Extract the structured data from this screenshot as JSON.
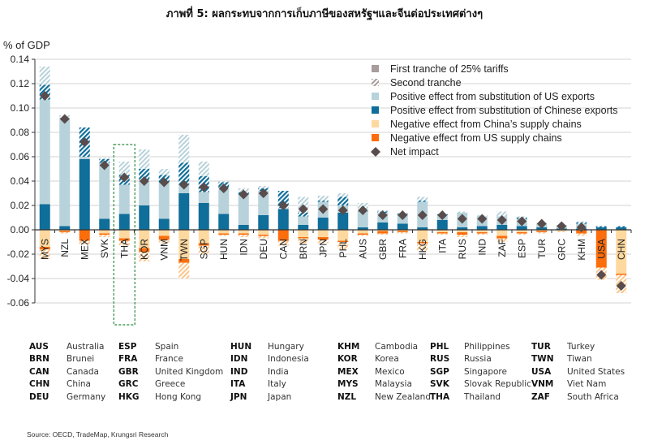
{
  "title": "ภาพที่ 5: ผลกระทบจากการเก็บภาษีของสหรัฐฯและจีนต่อประเทศต่างๆ",
  "source": "Source: OECD, TradeMap, Krungsri Research",
  "colors": {
    "chinese": "#0f6e9a",
    "us": "#b7d2da",
    "china_supply": "#fdd9a0",
    "us_supply": "#fc6d0c",
    "net": "#584c4c",
    "highlight": "#2e8b3e",
    "first_tranche": "#a89c9c"
  },
  "chart_data": {
    "type": "bar",
    "title": "",
    "ylabel": "% of GDP",
    "ylim": [
      -0.06,
      0.14
    ],
    "yticks": [
      "-0.06",
      "-0.04",
      "-0.02",
      "0.00",
      "0.02",
      "0.04",
      "0.06",
      "0.08",
      "0.10",
      "0.12",
      "0.14"
    ],
    "grid": true,
    "legend_position": "top-right",
    "highlight_category": "THA",
    "legend": [
      "First tranche of 25% tariffs",
      "Second tranche",
      "Positive effect from substitution of US exports",
      "Positive effect from substitution of Chinese exports",
      "Negative effect from China’s supply chains",
      "Negative effect from US supply chains",
      "Net impact"
    ],
    "categories": [
      "MYS",
      "NZL",
      "MEX",
      "SVK",
      "THA",
      "KOR",
      "VNM",
      "TWN",
      "SGP",
      "HUN",
      "IDN",
      "DEU",
      "CAN",
      "BRN",
      "JPN",
      "PHL",
      "AUS",
      "GBR",
      "FRA",
      "HKG",
      "ITA",
      "RUS",
      "IND",
      "ZAF",
      "ESP",
      "TUR",
      "GRC",
      "KHM",
      "USA",
      "CHN"
    ],
    "series": [
      {
        "name": "Positive effect from substitution of Chinese exports (first tranche)",
        "values": [
          0.021,
          0.003,
          0.058,
          0.009,
          0.013,
          0.02,
          0.009,
          0.03,
          0.022,
          0.013,
          0.004,
          0.012,
          0.017,
          0.004,
          0.01,
          0.014,
          0.002,
          0.006,
          0.005,
          0.002,
          0.008,
          0.002,
          0.003,
          0.004,
          0.003,
          0.002,
          0.001,
          0.001,
          0.002,
          0.002
        ]
      },
      {
        "name": "Positive effect from substitution of US exports (first tranche)",
        "values": [
          0.086,
          0.089,
          0.002,
          0.046,
          0.024,
          0.02,
          0.03,
          0.007,
          0.009,
          0.02,
          0.025,
          0.02,
          0.001,
          0.007,
          0.013,
          0.006,
          0.013,
          0.008,
          0.007,
          0.021,
          0.004,
          0.012,
          0.008,
          0.007,
          0.006,
          0.003,
          0.003,
          0.004,
          0,
          0
        ]
      },
      {
        "name": "Positive effect from substitution of Chinese exports (second tranche)",
        "values": [
          0.012,
          0,
          0.024,
          0.003,
          0.008,
          0.01,
          0.006,
          0.018,
          0.013,
          0.006,
          0.002,
          0.002,
          0.014,
          0.003,
          0.001,
          0.007,
          0.001,
          0.001,
          0.001,
          0.001,
          0.001,
          0,
          0,
          0,
          0.001,
          0,
          0,
          0.001,
          0.001,
          0.001
        ]
      },
      {
        "name": "Positive effect from substitution of US exports (second tranche)",
        "values": [
          0.015,
          0.002,
          0,
          0.001,
          0.011,
          0.016,
          0.005,
          0.023,
          0.012,
          0.001,
          0.003,
          0.002,
          0,
          0.013,
          0.004,
          0.003,
          0.006,
          0.001,
          0.001,
          0.003,
          0,
          0.001,
          0.001,
          0.004,
          0.001,
          0.001,
          0,
          0.001,
          0,
          0
        ]
      },
      {
        "name": "Negative effect from China’s supply chains (first tranche)",
        "values": [
          -0.014,
          -0.001,
          0,
          -0.003,
          -0.007,
          -0.015,
          -0.005,
          -0.024,
          -0.011,
          -0.003,
          -0.003,
          -0.004,
          0,
          -0.006,
          -0.006,
          -0.009,
          -0.003,
          -0.001,
          -0.001,
          -0.01,
          -0.002,
          -0.002,
          -0.002,
          -0.005,
          -0.002,
          -0.001,
          -0.001,
          0,
          0,
          -0.036
        ]
      },
      {
        "name": "Negative effect from US supply chains (first tranche)",
        "values": [
          -0.002,
          -0.001,
          -0.009,
          -0.001,
          -0.002,
          -0.003,
          -0.003,
          -0.003,
          -0.002,
          -0.001,
          -0.001,
          -0.001,
          -0.009,
          -0.001,
          -0.002,
          -0.001,
          -0.001,
          -0.002,
          -0.001,
          -0.001,
          -0.001,
          -0.002,
          -0.001,
          -0.002,
          -0.001,
          -0.001,
          0,
          -0.003,
          -0.031,
          -0.001
        ]
      },
      {
        "name": "Negative effects (second tranche)",
        "values": [
          -0.008,
          -0.001,
          -0.003,
          -0.002,
          -0.004,
          -0.008,
          -0.003,
          -0.013,
          -0.007,
          -0.001,
          -0.002,
          -0.002,
          -0.004,
          -0.004,
          -0.003,
          -0.006,
          -0.001,
          -0.001,
          -0.001,
          -0.006,
          -0.001,
          -0.002,
          -0.001,
          -0.003,
          -0.001,
          -0.001,
          -0.001,
          -0.002,
          -0.01,
          -0.015
        ]
      },
      {
        "name": "Net impact",
        "values": [
          0.11,
          0.091,
          0.072,
          0.053,
          0.043,
          0.04,
          0.039,
          0.037,
          0.035,
          0.034,
          0.029,
          0.03,
          0.02,
          0.017,
          0.017,
          0.016,
          0.016,
          0.012,
          0.012,
          0.012,
          0.012,
          0.009,
          0.009,
          0.008,
          0.007,
          0.005,
          0.003,
          0.002,
          -0.037,
          -0.046
        ]
      }
    ]
  },
  "country_table": [
    [
      {
        "code": "AUS",
        "name": "Australia"
      },
      {
        "code": "BRN",
        "name": "Brunei"
      },
      {
        "code": "CAN",
        "name": "Canada"
      },
      {
        "code": "CHN",
        "name": "China"
      },
      {
        "code": "DEU",
        "name": "Germany"
      }
    ],
    [
      {
        "code": "ESP",
        "name": "Spain"
      },
      {
        "code": "FRA",
        "name": "France"
      },
      {
        "code": "GBR",
        "name": "United Kingdom"
      },
      {
        "code": "GRC",
        "name": "Greece"
      },
      {
        "code": "HKG",
        "name": "Hong Kong"
      }
    ],
    [
      {
        "code": "HUN",
        "name": "Hungary"
      },
      {
        "code": "IDN",
        "name": "Indonesia"
      },
      {
        "code": "IND",
        "name": "India"
      },
      {
        "code": "ITA",
        "name": "Italy"
      },
      {
        "code": "JPN",
        "name": "Japan"
      }
    ],
    [
      {
        "code": "KHM",
        "name": "Cambodia"
      },
      {
        "code": "KOR",
        "name": "Korea"
      },
      {
        "code": "MEX",
        "name": "Mexico"
      },
      {
        "code": "MYS",
        "name": "Malaysia"
      },
      {
        "code": "NZL",
        "name": "New Zealand"
      }
    ],
    [
      {
        "code": "PHL",
        "name": "Philippines"
      },
      {
        "code": "RUS",
        "name": "Russia"
      },
      {
        "code": "SGP",
        "name": "Singapore"
      },
      {
        "code": "SVK",
        "name": "Slovak Republic"
      },
      {
        "code": "THA",
        "name": "Thailand"
      }
    ],
    [
      {
        "code": "TUR",
        "name": "Turkey"
      },
      {
        "code": "TWN",
        "name": "Tiwan"
      },
      {
        "code": "USA",
        "name": "United States"
      },
      {
        "code": "VNM",
        "name": "Viet Nam"
      },
      {
        "code": "ZAF",
        "name": "South Africa"
      }
    ]
  ]
}
